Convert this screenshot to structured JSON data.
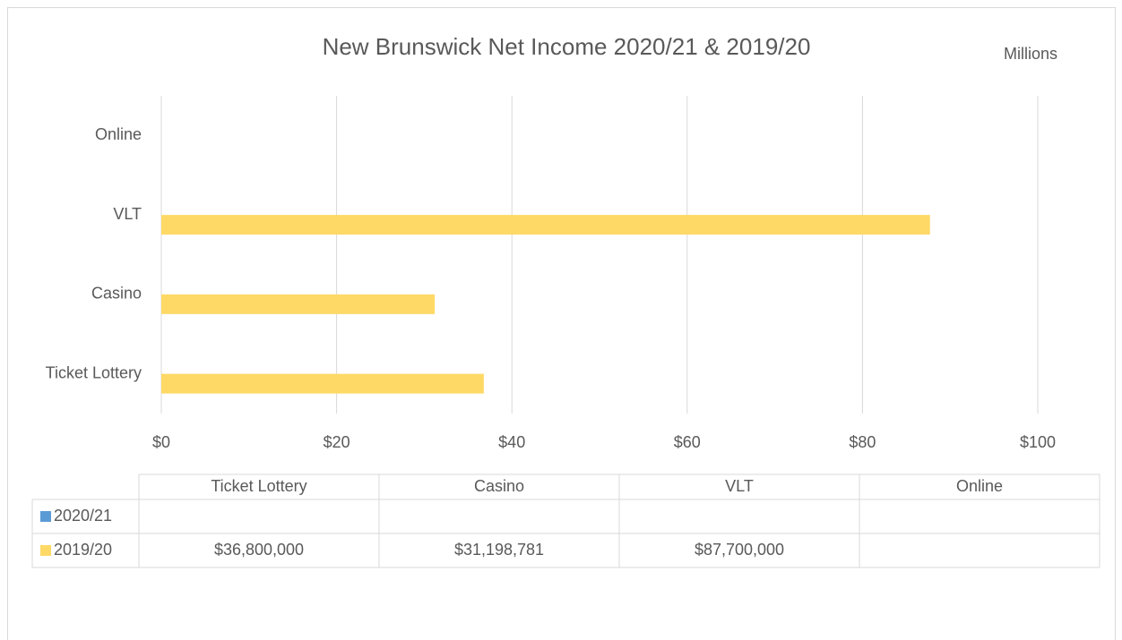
{
  "chart_data": {
    "type": "bar",
    "orientation": "horizontal",
    "title": "New Brunswick Net Income 2020/21 & 2019/20",
    "unit_label": "Millions",
    "categories": [
      "Ticket Lottery",
      "Casino",
      "VLT",
      "Online"
    ],
    "series": [
      {
        "name": "2020/21",
        "color": "#5b9bd5",
        "values": [
          null,
          null,
          null,
          null
        ],
        "value_labels": [
          null,
          null,
          null,
          null
        ]
      },
      {
        "name": "2019/20",
        "color": "#ffd966",
        "values": [
          36.8,
          31.198781,
          87.7,
          null
        ],
        "value_labels": [
          "$36,800,000",
          "$31,198,781",
          "$87,700,000",
          null
        ]
      }
    ],
    "xlim": [
      0,
      100
    ],
    "xticks": [
      {
        "value": 0,
        "label": "$0"
      },
      {
        "value": 20,
        "label": "$20"
      },
      {
        "value": 40,
        "label": "$40"
      },
      {
        "value": 60,
        "label": "$60"
      },
      {
        "value": 80,
        "label": "$80"
      },
      {
        "value": 100,
        "label": "$100"
      }
    ],
    "grid": true,
    "data_table": true
  }
}
